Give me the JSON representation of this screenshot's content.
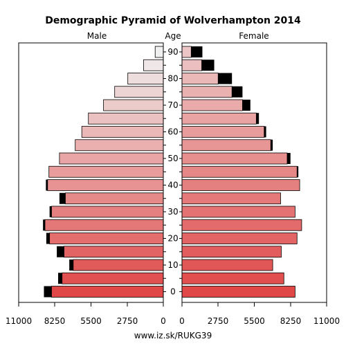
{
  "chart_data": {
    "type": "bar",
    "title": "Demographic Pyramid of Wolverhampton 2014",
    "left_label": "Male",
    "center_label": "Age",
    "right_label": "Female",
    "footer": "www.iz.sk/RUKG39",
    "xlim": [
      0,
      11000
    ],
    "x_ticks": [
      "11000",
      "8250",
      "5500",
      "2750",
      "0",
      "0",
      "2750",
      "5500",
      "8250",
      "11000"
    ],
    "age_ticks": [
      "0",
      "10",
      "20",
      "30",
      "40",
      "50",
      "60",
      "70",
      "80",
      "90"
    ],
    "age_groups": [
      "0-4",
      "5-9",
      "10-14",
      "15-19",
      "20-24",
      "25-29",
      "30-34",
      "35-39",
      "40-44",
      "45-49",
      "50-54",
      "55-59",
      "60-64",
      "65-69",
      "70-74",
      "75-79",
      "80-84",
      "85-89",
      "90+"
    ],
    "male_total": [
      9080,
      8000,
      7150,
      8100,
      8900,
      9150,
      8650,
      7900,
      8930,
      8700,
      7900,
      6700,
      6200,
      5700,
      4550,
      3700,
      2700,
      1500,
      620
    ],
    "male_inner": [
      8500,
      7700,
      6850,
      7550,
      8650,
      9000,
      8500,
      7450,
      8800,
      8700,
      7900,
      6700,
      6200,
      5700,
      4550,
      3700,
      2700,
      1500,
      620
    ],
    "female_total": [
      8600,
      7750,
      6900,
      7550,
      8750,
      9100,
      8600,
      7500,
      8950,
      8850,
      8250,
      6900,
      6400,
      5850,
      5200,
      4600,
      3800,
      2450,
      1550
    ],
    "female_inner": [
      8600,
      7750,
      6900,
      7550,
      8750,
      9100,
      8600,
      7500,
      8950,
      8750,
      8000,
      6750,
      6250,
      5650,
      4600,
      3800,
      2750,
      1500,
      700
    ],
    "colors": {
      "young": "#e04848",
      "old": "#f0f0f0",
      "surplus": "#000000"
    }
  }
}
